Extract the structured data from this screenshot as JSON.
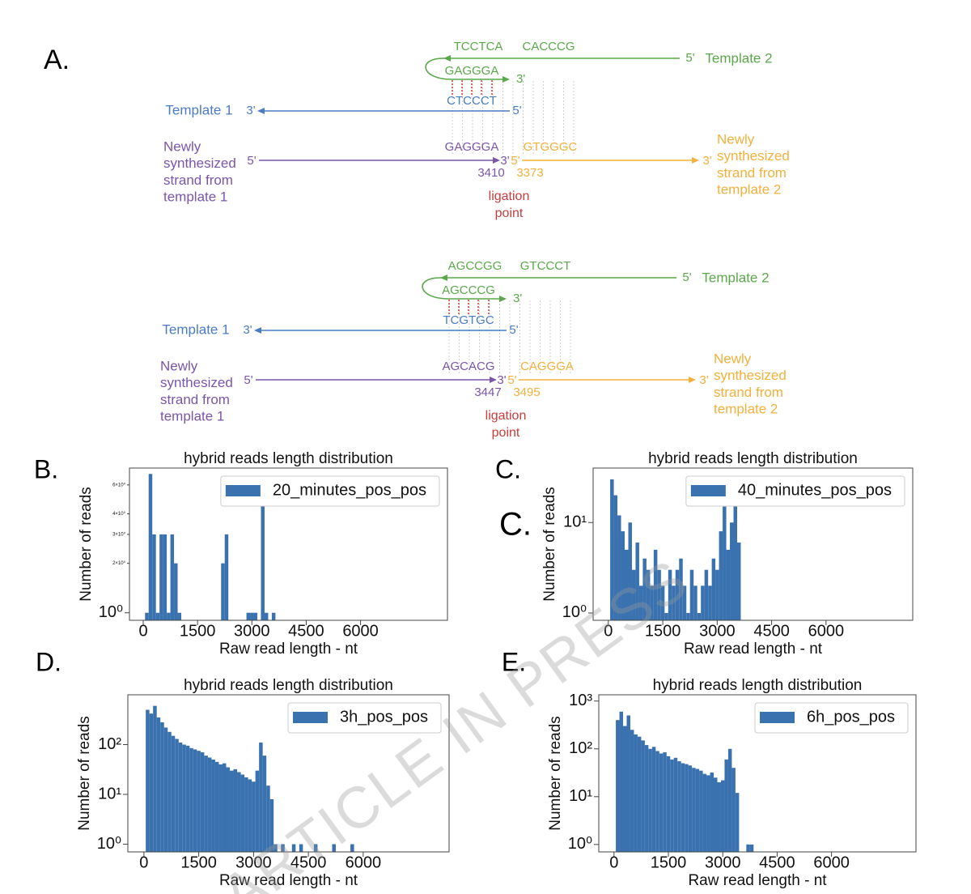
{
  "panel_labels": [
    "A.",
    "B.",
    "C.",
    "C.",
    "D.",
    "E."
  ],
  "watermark": "ARTICLE IN PRESS",
  "diagram": {
    "blocks": [
      {
        "template2_top_left": "TCCTCA",
        "template2_top_right": "CACCCG",
        "template2_end": "5'",
        "template2_label": "Template 2",
        "hairpin": "GAGGGA",
        "hairpin_end": "3'",
        "template1_seq": "CTCCCT",
        "template1_label": "Template 1",
        "template1_left_end": "3'",
        "template1_right_end": "5'",
        "new1_label": [
          "Newly",
          "synthesized",
          "strand from",
          "template 1"
        ],
        "new1_start": "5'",
        "new1_seq": "GAGGGA",
        "new1_end": "3'",
        "new1_pos": "3410",
        "new2_start": "5'",
        "new2_seq": "GTGGGC",
        "new2_pos": "3373",
        "new2_end": "3'",
        "new2_label": [
          "Newly",
          "synthesized",
          "strand from",
          "template 2"
        ],
        "ligation": [
          "ligation",
          "point"
        ]
      },
      {
        "template2_top_left": "AGCCGG",
        "template2_top_right": "GTCCCT",
        "template2_end": "5'",
        "template2_label": "Template 2",
        "hairpin": "AGCCCG",
        "hairpin_end": "3'",
        "template1_seq": "TCGTGC",
        "template1_label": "Template 1",
        "template1_left_end": "3'",
        "template1_right_end": "5'",
        "new1_label": [
          "Newly",
          "synthesized",
          "strand from",
          "template 1"
        ],
        "new1_start": "5'",
        "new1_seq": "AGCACG",
        "new1_end": "3'",
        "new1_pos": "3447",
        "new2_start": "5'",
        "new2_seq": "CAGGGA",
        "new2_pos": "3495",
        "new2_end": "3'",
        "new2_label": [
          "Newly",
          "synthesized",
          "strand from",
          "template 2"
        ],
        "ligation": [
          "ligation",
          "point"
        ]
      }
    ]
  },
  "chart_data": [
    {
      "type": "histogram",
      "title": "hybrid reads length distribution",
      "xlabel": "Raw read length - nt",
      "ylabel": "Number of reads",
      "bins": [
        50,
        150,
        250,
        350,
        450,
        550,
        650,
        750,
        850,
        950,
        1050,
        1150,
        1250,
        1350,
        1450,
        1550,
        1650,
        1750,
        1850,
        1950,
        2050,
        2150,
        2250,
        2350,
        2450,
        2550,
        2650,
        2750,
        2850,
        2950,
        3050,
        3150,
        3250,
        3350,
        3450,
        3550,
        3650
      ],
      "series": [
        {
          "name": "20_minutes_pos_pos",
          "color": "#3a72b0",
          "values": [
            1,
            7,
            3,
            1,
            3,
            3,
            1,
            3,
            2,
            1,
            0,
            0,
            0,
            0,
            0,
            0,
            0,
            0,
            0,
            0,
            0,
            2,
            3,
            0,
            0,
            0,
            0,
            0,
            1,
            1,
            1,
            0,
            5,
            1,
            0,
            1
          ]
        }
      ],
      "xlim": [
        -380,
        8400
      ],
      "xticks": [
        0,
        1500,
        3000,
        4500,
        6000
      ],
      "ylim": [
        0.9,
        7.6
      ],
      "log_y": true,
      "yticks": [
        {
          "value": 1,
          "label": "10⁰"
        },
        {
          "value": 2,
          "label": "2×10⁰"
        },
        {
          "value": 3,
          "label": "3×10⁰"
        },
        {
          "value": 4,
          "label": "4×10⁰"
        },
        {
          "value": 6,
          "label": "6×10⁰"
        }
      ],
      "legend": "upper right"
    },
    {
      "type": "histogram",
      "title": "hybrid reads length distribution",
      "xlabel": "Raw read length - nt",
      "ylabel": "Number of reads",
      "bins": [
        50,
        150,
        250,
        350,
        450,
        550,
        650,
        750,
        850,
        950,
        1050,
        1150,
        1250,
        1350,
        1450,
        1550,
        1650,
        1750,
        1850,
        1950,
        2050,
        2150,
        2250,
        2350,
        2450,
        2550,
        2650,
        2750,
        2850,
        2950,
        3050,
        3150,
        3250,
        3350,
        3450,
        3550,
        3650
      ],
      "series": [
        {
          "name": "40_minutes_pos_pos",
          "color": "#3a72b0",
          "values": [
            30,
            20,
            12,
            8,
            5,
            10,
            3,
            6,
            2,
            4,
            3,
            2,
            5,
            3,
            2,
            1,
            3,
            2,
            3,
            4,
            2,
            1,
            3,
            2,
            1,
            2,
            3,
            2,
            4,
            3,
            8,
            15,
            5,
            10,
            20,
            6
          ]
        }
      ],
      "xlim": [
        -420,
        8390
      ],
      "xticks": [
        0,
        1500,
        3000,
        4500,
        6000
      ],
      "ylim": [
        0.83,
        40
      ],
      "log_y": true,
      "yticks": [
        {
          "value": 1,
          "label": "10⁰"
        },
        {
          "value": 10,
          "label": "10¹"
        }
      ],
      "legend": "upper right"
    },
    {
      "type": "histogram",
      "title": "hybrid reads length distribution",
      "xlabel": "Raw read length - nt",
      "ylabel": "Number of reads",
      "bins": [
        50,
        150,
        250,
        350,
        450,
        550,
        650,
        750,
        850,
        950,
        1050,
        1150,
        1250,
        1350,
        1450,
        1550,
        1650,
        1750,
        1850,
        1950,
        2050,
        2150,
        2250,
        2350,
        2450,
        2550,
        2650,
        2750,
        2850,
        2950,
        3050,
        3150,
        3250,
        3350,
        3450,
        3550,
        3650,
        3750,
        3850,
        3950,
        4050,
        4150,
        4250,
        4350,
        4450,
        4550,
        4650,
        4750,
        4850,
        4950,
        5050,
        5150,
        5250,
        5350,
        5450,
        5550,
        5650,
        5750,
        5850
      ],
      "series": [
        {
          "name": "3h_pos_pos",
          "color": "#3a72b0",
          "values": [
            500,
            420,
            600,
            350,
            280,
            220,
            180,
            150,
            130,
            110,
            100,
            95,
            85,
            80,
            75,
            70,
            60,
            55,
            50,
            45,
            40,
            42,
            35,
            30,
            32,
            28,
            25,
            22,
            20,
            18,
            30,
            110,
            60,
            15,
            8,
            1,
            0,
            1,
            0,
            0,
            1,
            0,
            1,
            0,
            0,
            0,
            1,
            0,
            0,
            0,
            0,
            1,
            0,
            0,
            0,
            0,
            1,
            0
          ]
        }
      ],
      "xlim": [
        -440,
        8350
      ],
      "xticks": [
        0,
        1500,
        3000,
        4500,
        6000
      ],
      "ylim": [
        0.7,
        1000
      ],
      "log_y": true,
      "yticks": [
        {
          "value": 1,
          "label": "10⁰"
        },
        {
          "value": 10,
          "label": "10¹"
        },
        {
          "value": 100,
          "label": "10²"
        }
      ],
      "legend": "upper right"
    },
    {
      "type": "histogram",
      "title": "hybrid reads length distribution",
      "xlabel": "Raw read length - nt",
      "ylabel": "Number of reads",
      "bins": [
        50,
        150,
        250,
        350,
        450,
        550,
        650,
        750,
        850,
        950,
        1050,
        1150,
        1250,
        1350,
        1450,
        1550,
        1650,
        1750,
        1850,
        1950,
        2050,
        2150,
        2250,
        2350,
        2450,
        2550,
        2650,
        2750,
        2850,
        2950,
        3050,
        3150,
        3250,
        3350,
        3450,
        3550,
        3650,
        3750,
        3850
      ],
      "series": [
        {
          "name": "6h_pos_pos",
          "color": "#3a72b0",
          "values": [
            400,
            600,
            300,
            500,
            250,
            200,
            180,
            150,
            120,
            100,
            110,
            90,
            80,
            85,
            70,
            60,
            65,
            55,
            50,
            48,
            45,
            40,
            38,
            35,
            30,
            28,
            32,
            25,
            20,
            22,
            60,
            100,
            40,
            12,
            0,
            0,
            1,
            1
          ]
        }
      ],
      "xlim": [
        -420,
        8330
      ],
      "xticks": [
        0,
        1500,
        3000,
        4500,
        6000
      ],
      "ylim": [
        0.7,
        1350
      ],
      "log_y": true,
      "yticks": [
        {
          "value": 1,
          "label": "10⁰"
        },
        {
          "value": 10,
          "label": "10¹"
        },
        {
          "value": 100,
          "label": "10²"
        },
        {
          "value": 1000,
          "label": "10³"
        }
      ],
      "legend": "upper right"
    }
  ]
}
